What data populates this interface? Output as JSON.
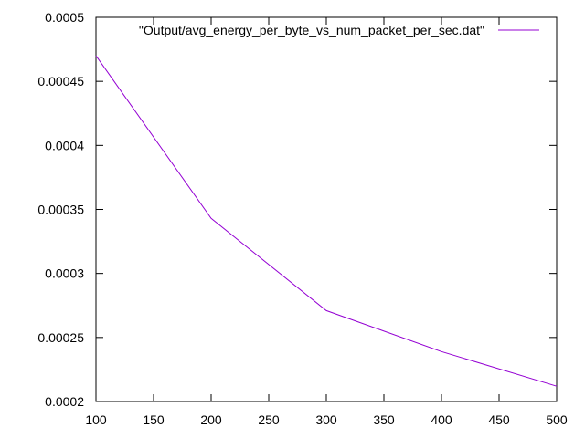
{
  "chart_data": {
    "type": "line",
    "title": "",
    "xlabel": "",
    "ylabel": "",
    "xlim": [
      100,
      500
    ],
    "ylim": [
      0.0002,
      0.0005
    ],
    "x_ticks": [
      100,
      150,
      200,
      250,
      300,
      350,
      400,
      450,
      500
    ],
    "x_tick_labels": [
      "100",
      "150",
      "200",
      "250",
      "300",
      "350",
      "400",
      "450",
      "500"
    ],
    "y_ticks": [
      0.0002,
      0.00025,
      0.0003,
      0.00035,
      0.0004,
      0.00045,
      0.0005
    ],
    "y_tick_labels": [
      "0.0002",
      "0.00025",
      "0.0003",
      "0.00035",
      "0.0004",
      "0.00045",
      "0.0005"
    ],
    "grid": false,
    "legend_position": "top-right",
    "series": [
      {
        "name": "\"Output/avg_energy_per_byte_vs_num_packet_per_sec.dat\"",
        "color": "#9400d3",
        "x": [
          100,
          200,
          300,
          400,
          500
        ],
        "y": [
          0.00047,
          0.000343,
          0.000271,
          0.000239,
          0.000212
        ]
      }
    ]
  }
}
